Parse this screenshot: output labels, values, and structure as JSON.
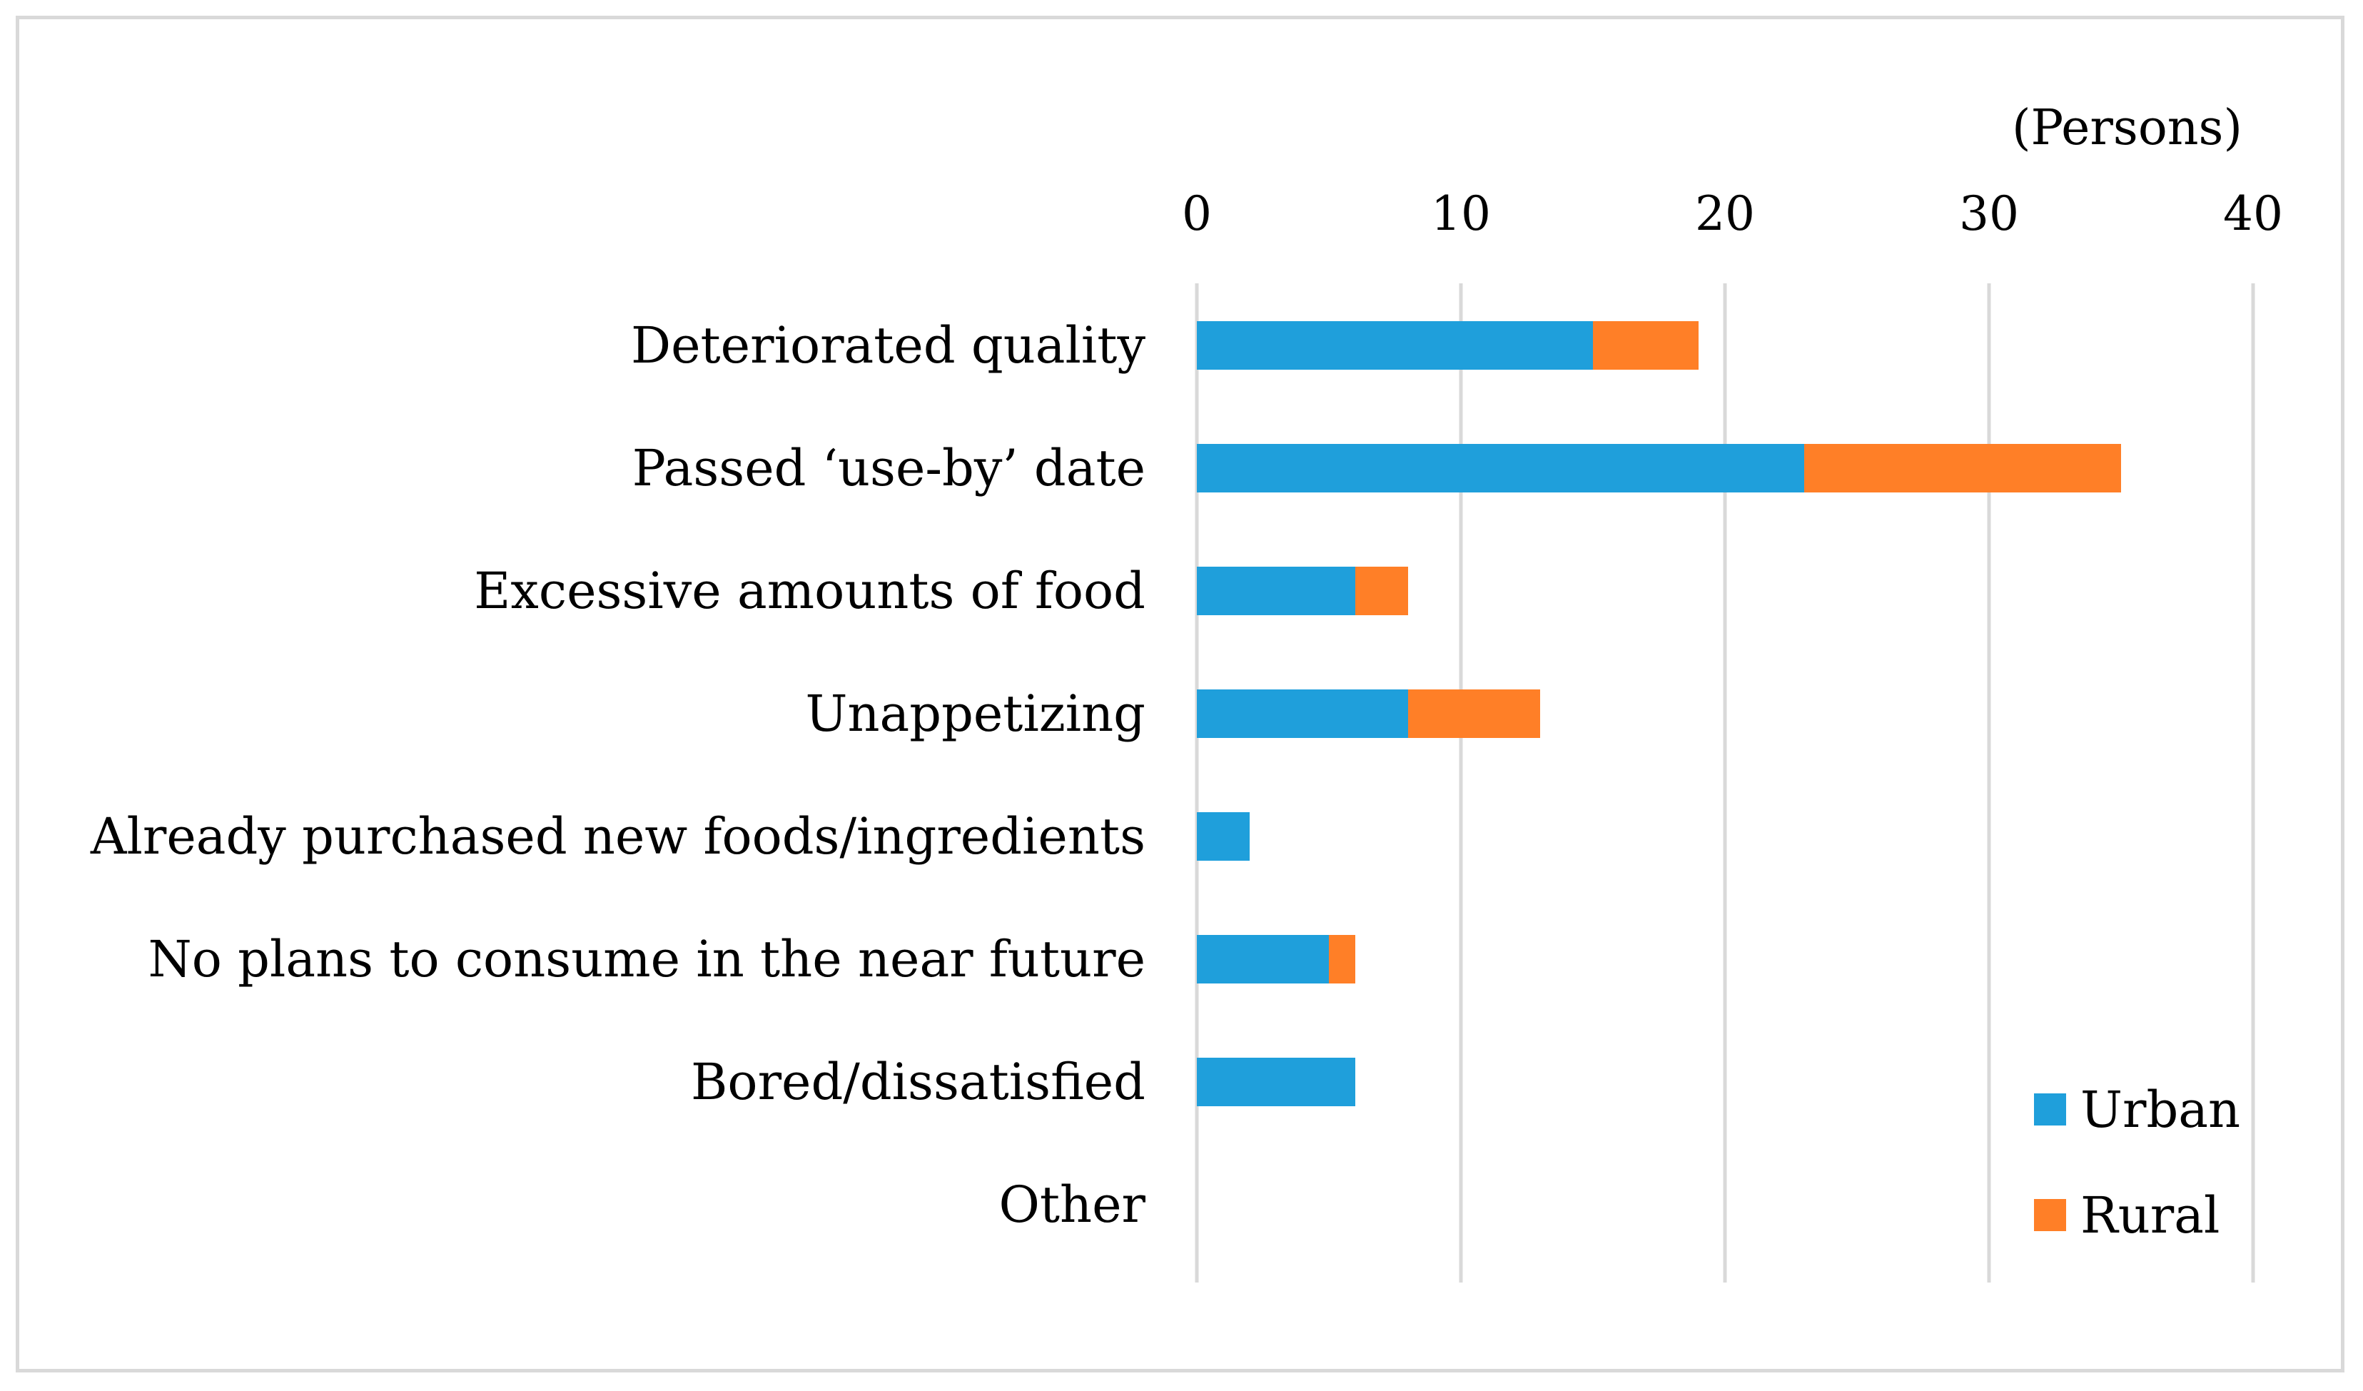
{
  "chart_data": {
    "type": "bar",
    "orientation": "horizontal",
    "stacked": true,
    "unit_label": "(Persons)",
    "categories": [
      "Deteriorated quality",
      "Passed ‘use-by’ date",
      "Excessive amounts of food",
      "Unappetizing",
      "Already purchased new foods/ingredients",
      "No plans to consume in the near future",
      "Bored/dissatisfied",
      "Other"
    ],
    "series": [
      {
        "name": "Urban",
        "color": "#1f9fdb",
        "values": [
          15,
          23,
          6,
          8,
          2,
          5,
          6,
          0
        ]
      },
      {
        "name": "Rural",
        "color": "#ff7f27",
        "values": [
          4,
          12,
          2,
          5,
          0,
          1,
          0,
          0
        ]
      }
    ],
    "xlim": [
      0,
      40
    ],
    "xticks": [
      0,
      10,
      20,
      30,
      40
    ],
    "tick_labels": [
      "0",
      "10",
      "20",
      "30",
      "40"
    ],
    "axis_position": "top",
    "grid": true,
    "legend_position": "bottom-right"
  }
}
